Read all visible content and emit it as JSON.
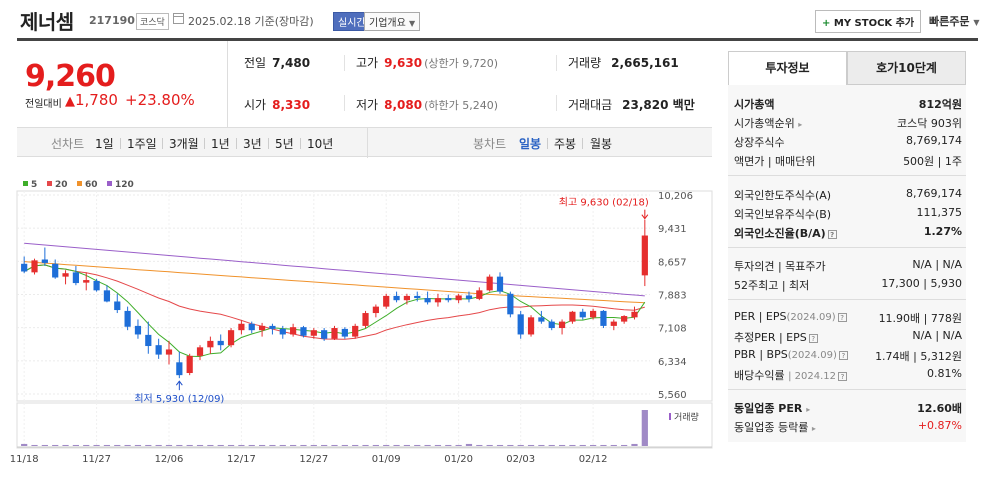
{
  "header": {
    "name": "제너셈",
    "code": "217190",
    "market": "코스닥",
    "date_text": "2025.02.18 기준(장마감)",
    "realtime": "실시간",
    "company_info": "기업개요",
    "mystock": "MY STOCK 추가",
    "quick_order": "빠른주문"
  },
  "price": {
    "current": "9,260",
    "change_label": "전일대비",
    "change": "1,780",
    "change_pct": "+23.80%"
  },
  "stats": {
    "prev_label": "전일",
    "prev": "7,480",
    "open_label": "시가",
    "open": "8,330",
    "high_label": "고가",
    "high": "9,630",
    "upper_limit": "(상한가 9,720)",
    "low_label": "저가",
    "low": "8,080",
    "lower_limit": "(하한가 5,240)",
    "volume_label": "거래량",
    "volume": "2,665,161",
    "amount_label": "거래대금",
    "amount": "23,820 백만"
  },
  "tabs": {
    "line_chart": "선차트",
    "periods": [
      "1일",
      "1주일",
      "3개월",
      "1년",
      "3년",
      "5년",
      "10년"
    ],
    "candle_chart": "봉차트",
    "candle_periods": [
      "일봉",
      "주봉",
      "월봉"
    ],
    "selected_candle": "일봉"
  },
  "chart_data": {
    "type": "candlestick",
    "legend": [
      {
        "name": "5",
        "color": "#3fae2a"
      },
      {
        "name": "20",
        "color": "#e5484a"
      },
      {
        "name": "60",
        "color": "#f0922b"
      },
      {
        "name": "120",
        "color": "#9a5fc9"
      }
    ],
    "y_ticks": [
      "10,206",
      "9,431",
      "8,657",
      "7,883",
      "7,108",
      "6,334",
      "5,560"
    ],
    "ylim": [
      5560,
      10206
    ],
    "x_ticks": [
      "11/18",
      "11/27",
      "12/06",
      "12/17",
      "12/27",
      "01/09",
      "01/20",
      "02/03",
      "02/12"
    ],
    "x_tick_index": [
      0,
      7,
      14,
      21,
      28,
      35,
      42,
      48,
      55
    ],
    "max_annotation": "최고 9,630 (02/18)",
    "min_annotation": "최저 5,930 (12/09)",
    "volume_label": "거래량",
    "candles": [
      [
        8600,
        8770,
        8380,
        8420
      ],
      [
        8400,
        8720,
        8350,
        8680
      ],
      [
        8700,
        8980,
        8550,
        8620
      ],
      [
        8600,
        8700,
        8250,
        8280
      ],
      [
        8300,
        8450,
        8120,
        8380
      ],
      [
        8400,
        8550,
        8100,
        8150
      ],
      [
        8160,
        8400,
        7980,
        8220
      ],
      [
        8200,
        8250,
        7950,
        7980
      ],
      [
        7980,
        8100,
        7700,
        7720
      ],
      [
        7720,
        7900,
        7450,
        7520
      ],
      [
        7500,
        7600,
        7050,
        7130
      ],
      [
        7150,
        7300,
        6850,
        6950
      ],
      [
        6940,
        7250,
        6500,
        6680
      ],
      [
        6700,
        6850,
        6380,
        6480
      ],
      [
        6480,
        6800,
        6250,
        6600
      ],
      [
        6300,
        6550,
        5930,
        6000
      ],
      [
        6050,
        6500,
        6000,
        6450
      ],
      [
        6450,
        6700,
        6350,
        6650
      ],
      [
        6650,
        6900,
        6500,
        6800
      ],
      [
        6800,
        6950,
        6580,
        6700
      ],
      [
        6700,
        7100,
        6650,
        7050
      ],
      [
        7050,
        7280,
        6950,
        7200
      ],
      [
        7200,
        7250,
        6980,
        7050
      ],
      [
        7050,
        7220,
        6900,
        7150
      ],
      [
        7150,
        7200,
        6950,
        7080
      ],
      [
        7080,
        7150,
        6850,
        6950
      ],
      [
        6950,
        7200,
        6900,
        7120
      ],
      [
        7120,
        7150,
        6880,
        6920
      ],
      [
        6920,
        7100,
        6850,
        7050
      ],
      [
        7050,
        7100,
        6800,
        6850
      ],
      [
        6850,
        7150,
        6820,
        7100
      ],
      [
        7080,
        7120,
        6850,
        6900
      ],
      [
        6900,
        7200,
        6850,
        7150
      ],
      [
        7150,
        7500,
        7100,
        7450
      ],
      [
        7450,
        7650,
        7350,
        7600
      ],
      [
        7600,
        7900,
        7550,
        7850
      ],
      [
        7850,
        7950,
        7700,
        7750
      ],
      [
        7750,
        7900,
        7650,
        7850
      ],
      [
        7850,
        7950,
        7720,
        7800
      ],
      [
        7800,
        7950,
        7650,
        7700
      ],
      [
        7700,
        7900,
        7600,
        7800
      ],
      [
        7800,
        7880,
        7700,
        7750
      ],
      [
        7750,
        7900,
        7680,
        7860
      ],
      [
        7860,
        7950,
        7700,
        7780
      ],
      [
        7780,
        8050,
        7750,
        7980
      ],
      [
        7980,
        8350,
        7950,
        8300
      ],
      [
        8300,
        8400,
        7900,
        7950
      ],
      [
        7900,
        7950,
        7350,
        7420
      ],
      [
        7420,
        7500,
        6850,
        6950
      ],
      [
        6950,
        7400,
        6900,
        7350
      ],
      [
        7350,
        7500,
        7200,
        7250
      ],
      [
        7250,
        7300,
        7050,
        7100
      ],
      [
        7100,
        7300,
        6950,
        7250
      ],
      [
        7250,
        7500,
        7200,
        7480
      ],
      [
        7480,
        7550,
        7300,
        7350
      ],
      [
        7350,
        7550,
        7300,
        7500
      ],
      [
        7500,
        7520,
        7100,
        7150
      ],
      [
        7150,
        7300,
        7050,
        7250
      ],
      [
        7250,
        7400,
        7200,
        7380
      ],
      [
        7350,
        7600,
        7300,
        7480
      ],
      [
        8330,
        9630,
        8080,
        9260
      ]
    ],
    "volumes": [
      2,
      1,
      1,
      1,
      1,
      1,
      1,
      1,
      1,
      1,
      1,
      1,
      1,
      1,
      1,
      1,
      1,
      1,
      1,
      1,
      1,
      1,
      1,
      1,
      1,
      1,
      1,
      1,
      1,
      1,
      1,
      1,
      1,
      1,
      1,
      1,
      1,
      1,
      1,
      1,
      1,
      1,
      1,
      2,
      1,
      1,
      1,
      1,
      1,
      1,
      1,
      1,
      1,
      1,
      1,
      1,
      1,
      1,
      1,
      2,
      35
    ]
  },
  "sidebar": {
    "tab_invest": "투자정보",
    "tab_ask": "호가10단계",
    "market_cap_label": "시가총액",
    "market_cap": "812억원",
    "market_cap_rank_label": "시가총액순위",
    "market_cap_rank": "코스닥 903위",
    "listed_shares_label": "상장주식수",
    "listed_shares": "8,769,174",
    "face_value_label": "액면가 | 매매단위",
    "face_value": "500원 | 1주",
    "foreign_limit_label": "외국인한도주식수(A)",
    "foreign_limit": "8,769,174",
    "foreign_hold_label": "외국인보유주식수(B)",
    "foreign_hold": "111,375",
    "foreign_ratio_label": "외국인소진율(B/A)",
    "foreign_ratio": "1.27%",
    "opinion_label": "투자의견 | 목표주가",
    "opinion": "N/A | N/A",
    "week52_label": "52주최고 | 최저",
    "week52": "17,300 | 5,930",
    "per_label": "PER | EPS",
    "per_period": "(2024.09)",
    "per": "11.90배 | 778원",
    "est_per_label": "추정PER | EPS",
    "est_per": "N/A | N/A",
    "pbr_label": "PBR | BPS",
    "pbr_period": "(2024.09)",
    "pbr": "1.74배 | 5,312원",
    "dividend_label": "배당수익률",
    "dividend_period": "| 2024.12",
    "dividend": "0.81%",
    "industry_per_label": "동일업종 PER",
    "industry_per": "12.60배",
    "industry_rate_label": "동일업종 등락률",
    "industry_rate": "+0.87%"
  }
}
